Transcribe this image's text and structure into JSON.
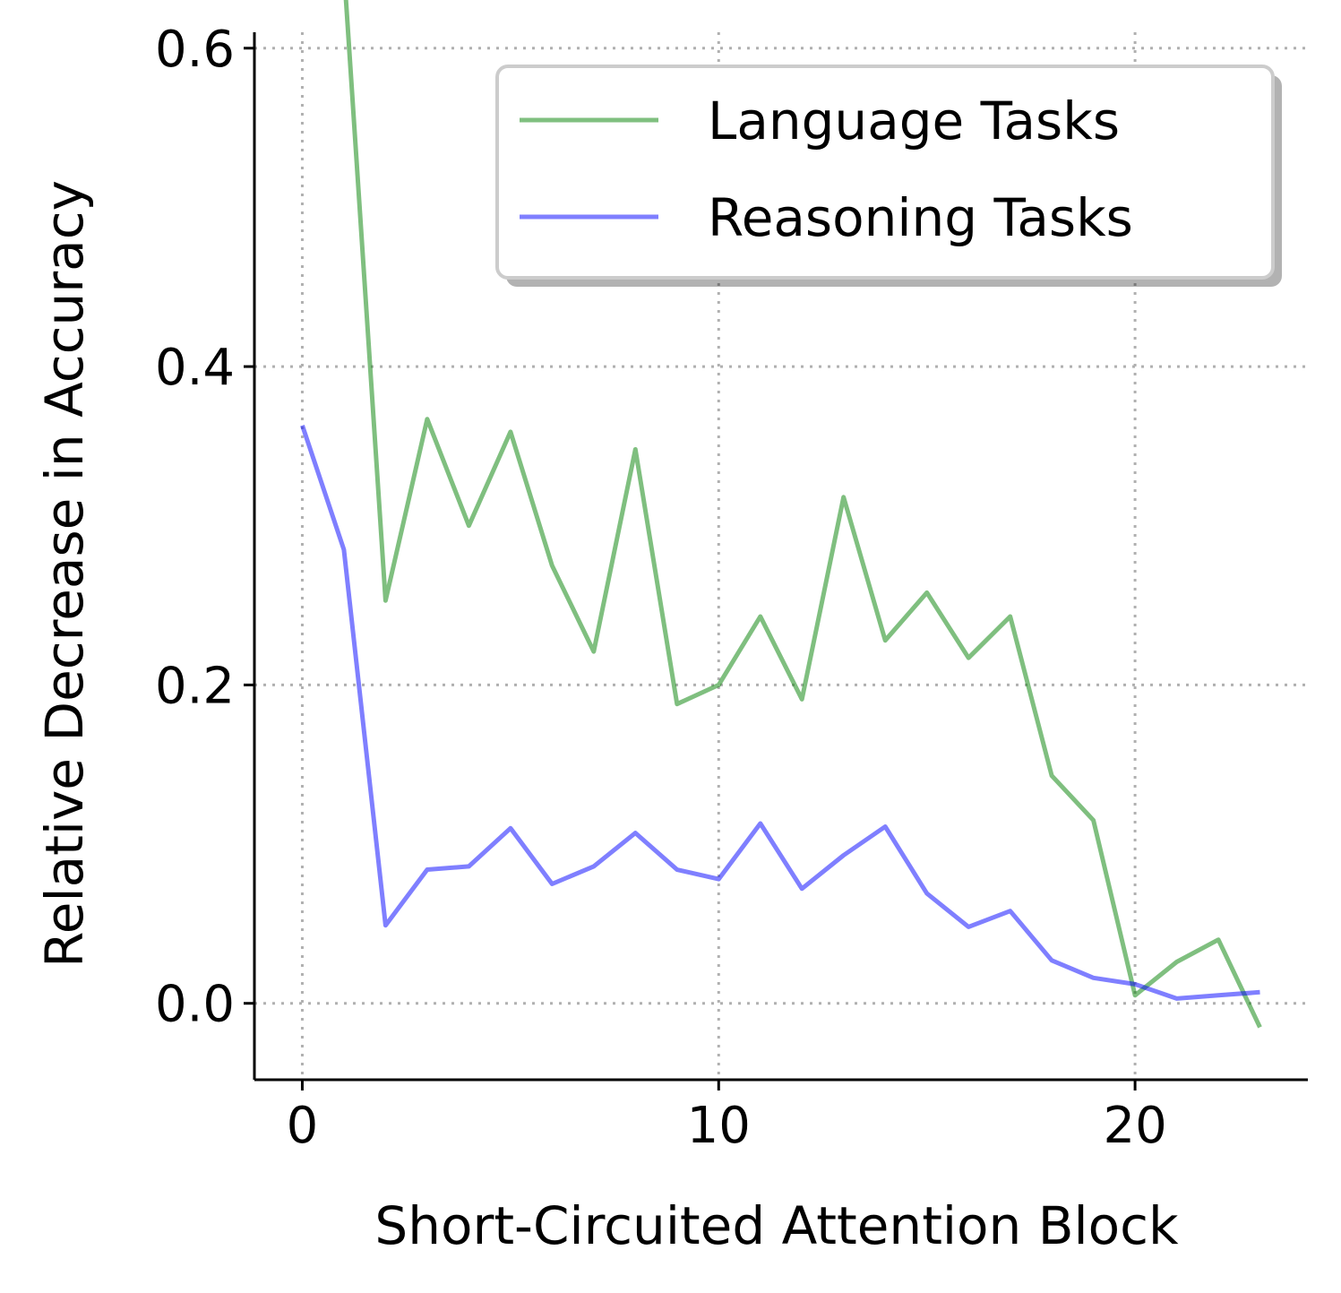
{
  "chart_data": {
    "type": "line",
    "title": "",
    "xlabel": "Short-Circuited Attention Block",
    "ylabel": "Relative Decrease in Accuracy",
    "xlim": [
      -1.15,
      24.15
    ],
    "ylim": [
      -0.048,
      0.61
    ],
    "xticks": [
      0,
      10,
      20
    ],
    "xtick_labels": [
      "0",
      "10",
      "20"
    ],
    "yticks": [
      0.0,
      0.2,
      0.4,
      0.6
    ],
    "ytick_labels": [
      "0.0",
      "0.2",
      "0.4",
      "0.6"
    ],
    "grid": true,
    "legend_position": "upper right",
    "x": [
      0,
      1,
      2,
      3,
      4,
      5,
      6,
      7,
      8,
      9,
      10,
      11,
      12,
      13,
      14,
      15,
      16,
      17,
      18,
      19,
      20,
      21,
      22,
      23
    ],
    "series": [
      {
        "name": "Language Tasks",
        "color": "#008000",
        "opacity": 0.5,
        "values": [
          0.676,
          0.65,
          0.253,
          0.367,
          0.3,
          0.359,
          0.275,
          0.221,
          0.348,
          0.188,
          0.2,
          0.243,
          0.191,
          0.318,
          0.228,
          0.258,
          0.217,
          0.243,
          0.143,
          0.115,
          0.005,
          0.026,
          0.04,
          -0.015
        ]
      },
      {
        "name": "Reasoning Tasks",
        "color": "#0000ff",
        "opacity": 0.5,
        "values": [
          0.363,
          0.285,
          0.049,
          0.084,
          0.086,
          0.11,
          0.075,
          0.086,
          0.107,
          0.084,
          0.078,
          0.113,
          0.072,
          0.093,
          0.111,
          0.069,
          0.048,
          0.058,
          0.027,
          0.016,
          0.012,
          0.003,
          0.005,
          0.007
        ]
      }
    ]
  }
}
